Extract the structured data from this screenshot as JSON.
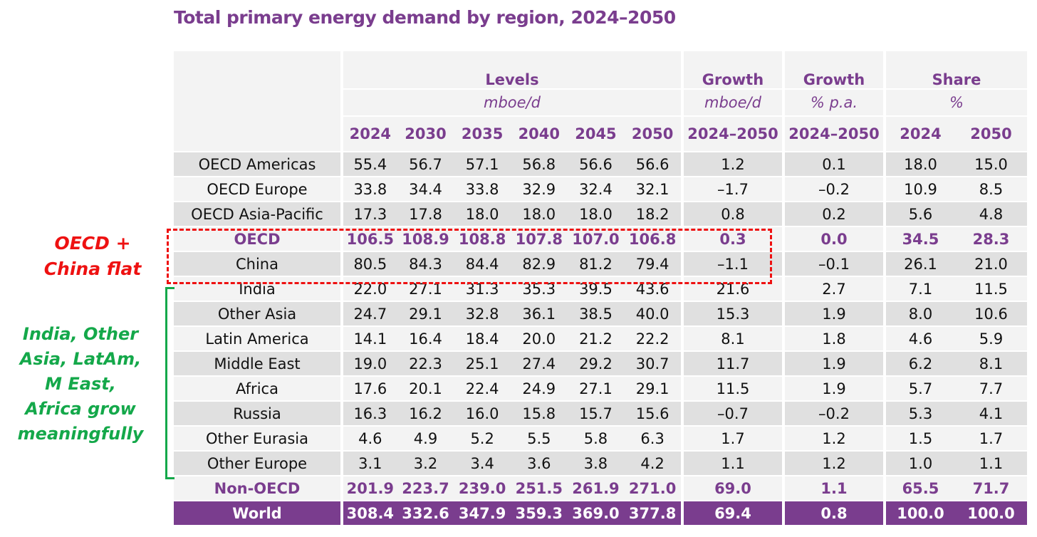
{
  "title": "Total primary energy demand by region, 2024–2050",
  "header": {
    "groups": [
      "Levels",
      "Growth",
      "Growth",
      "Share"
    ],
    "units": [
      "mboe/d",
      "mboe/d",
      "% p.a.",
      "%"
    ],
    "columns": [
      "2024",
      "2030",
      "2035",
      "2040",
      "2045",
      "2050",
      "2024–2050",
      "2024–2050",
      "2024",
      "2050"
    ]
  },
  "rows": [
    {
      "label": "OECD Americas",
      "style": "dark",
      "values": [
        "55.4",
        "56.7",
        "57.1",
        "56.8",
        "56.6",
        "56.6",
        "1.2",
        "0.1",
        "18.0",
        "15.0"
      ]
    },
    {
      "label": "OECD Europe",
      "style": "light",
      "values": [
        "33.8",
        "34.4",
        "33.8",
        "32.9",
        "32.4",
        "32.1",
        "–1.7",
        "–0.2",
        "10.9",
        "8.5"
      ]
    },
    {
      "label": "OECD Asia-Pacific",
      "style": "dark",
      "values": [
        "17.3",
        "17.8",
        "18.0",
        "18.0",
        "18.0",
        "18.2",
        "0.8",
        "0.2",
        "5.6",
        "4.8"
      ]
    },
    {
      "label": "OECD",
      "style": "light agg",
      "values": [
        "106.5",
        "108.9",
        "108.8",
        "107.8",
        "107.0",
        "106.8",
        "0.3",
        "0.0",
        "34.5",
        "28.3"
      ]
    },
    {
      "label": "China",
      "style": "dark",
      "values": [
        "80.5",
        "84.3",
        "84.4",
        "82.9",
        "81.2",
        "79.4",
        "–1.1",
        "–0.1",
        "26.1",
        "21.0"
      ]
    },
    {
      "label": "India",
      "style": "light",
      "values": [
        "22.0",
        "27.1",
        "31.3",
        "35.3",
        "39.5",
        "43.6",
        "21.6",
        "2.7",
        "7.1",
        "11.5"
      ]
    },
    {
      "label": "Other Asia",
      "style": "dark",
      "values": [
        "24.7",
        "29.1",
        "32.8",
        "36.1",
        "38.5",
        "40.0",
        "15.3",
        "1.9",
        "8.0",
        "10.6"
      ]
    },
    {
      "label": "Latin America",
      "style": "light",
      "values": [
        "14.1",
        "16.4",
        "18.4",
        "20.0",
        "21.2",
        "22.2",
        "8.1",
        "1.8",
        "4.6",
        "5.9"
      ]
    },
    {
      "label": "Middle East",
      "style": "dark",
      "values": [
        "19.0",
        "22.3",
        "25.1",
        "27.4",
        "29.2",
        "30.7",
        "11.7",
        "1.9",
        "6.2",
        "8.1"
      ]
    },
    {
      "label": "Africa",
      "style": "light",
      "values": [
        "17.6",
        "20.1",
        "22.4",
        "24.9",
        "27.1",
        "29.1",
        "11.5",
        "1.9",
        "5.7",
        "7.7"
      ]
    },
    {
      "label": "Russia",
      "style": "dark",
      "values": [
        "16.3",
        "16.2",
        "16.0",
        "15.8",
        "15.7",
        "15.6",
        "–0.7",
        "–0.2",
        "5.3",
        "4.1"
      ]
    },
    {
      "label": "Other Eurasia",
      "style": "light",
      "values": [
        "4.6",
        "4.9",
        "5.2",
        "5.5",
        "5.8",
        "6.3",
        "1.7",
        "1.2",
        "1.5",
        "1.7"
      ]
    },
    {
      "label": "Other Europe",
      "style": "dark",
      "values": [
        "3.1",
        "3.2",
        "3.4",
        "3.6",
        "3.8",
        "4.2",
        "1.1",
        "1.2",
        "1.0",
        "1.1"
      ]
    },
    {
      "label": "Non-OECD",
      "style": "light agg",
      "values": [
        "201.9",
        "223.7",
        "239.0",
        "251.5",
        "261.9",
        "271.0",
        "69.0",
        "1.1",
        "65.5",
        "71.7"
      ]
    },
    {
      "label": "World",
      "style": "world",
      "values": [
        "308.4",
        "332.6",
        "347.9",
        "359.3",
        "369.0",
        "377.8",
        "69.4",
        "0.8",
        "100.0",
        "100.0"
      ]
    }
  ],
  "annotations": {
    "red_note": "OECD +\nChina flat",
    "green_note": "India, Other\nAsia, LatAm,\nM East,\nAfrica grow\nmeaningfully"
  },
  "colors": {
    "purple": "#7a3d8e",
    "red": "#ee1111",
    "green": "#14a84a"
  }
}
